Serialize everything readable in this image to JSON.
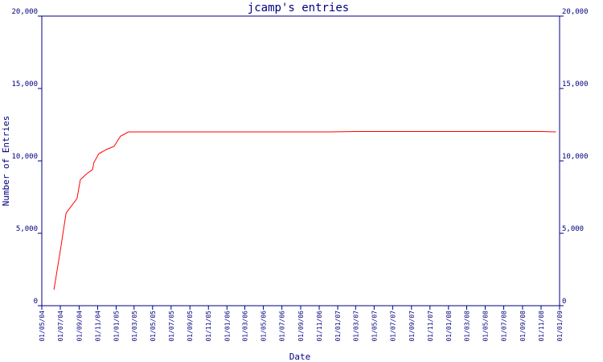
{
  "chart_data": {
    "type": "line",
    "title": "jcamp's entries",
    "xlabel": "Date",
    "ylabel": "Number of Entries",
    "ylim": [
      0,
      20000
    ],
    "xlim": [
      "01/05/04",
      "01/01/09"
    ],
    "grid": false,
    "y_ticks": [
      0,
      5000,
      10000,
      15000,
      20000
    ],
    "y_tick_labels": [
      "0",
      "5,000",
      "10,000",
      "15,000",
      "20,000"
    ],
    "x_tick_labels": [
      "01/05/04",
      "01/07/04",
      "01/09/04",
      "01/11/04",
      "01/01/05",
      "01/03/05",
      "01/05/05",
      "01/07/05",
      "01/09/05",
      "01/11/05",
      "01/01/06",
      "01/03/06",
      "01/05/06",
      "01/07/06",
      "01/09/06",
      "01/11/06",
      "01/01/07",
      "01/03/07",
      "01/05/07",
      "01/07/07",
      "01/09/07",
      "01/11/07",
      "01/01/08",
      "01/03/08",
      "01/05/08",
      "01/07/08",
      "01/09/08",
      "01/11/08",
      "01/01/09"
    ],
    "series": [
      {
        "color": "#ff0000",
        "x": [
          "2004-06-10",
          "2004-07-01",
          "2004-07-20",
          "2004-08-25",
          "2004-09-05",
          "2004-09-25",
          "2004-10-15",
          "2004-10-20",
          "2004-11-05",
          "2004-12-01",
          "2004-12-25",
          "2005-01-15",
          "2005-02-10",
          "2005-03-01",
          "2005-06-01",
          "2005-09-01",
          "2005-12-01",
          "2006-03-01",
          "2006-06-01",
          "2006-09-01",
          "2006-12-01",
          "2007-03-01",
          "2007-06-01",
          "2007-09-01",
          "2007-12-01",
          "2008-03-01",
          "2008-06-01",
          "2008-09-01",
          "2008-11-01",
          "2008-12-20"
        ],
        "y": [
          1100,
          3800,
          6400,
          7400,
          8700,
          9100,
          9400,
          9900,
          10500,
          10800,
          11000,
          11700,
          12000,
          12000,
          12000,
          12000,
          12000,
          12000,
          12000,
          12000,
          12000,
          12030,
          12030,
          12030,
          12030,
          12030,
          12030,
          12030,
          12030,
          12000
        ]
      }
    ]
  },
  "colors": {
    "axis": "#000080",
    "text": "#000080",
    "line": "#ff0000"
  }
}
